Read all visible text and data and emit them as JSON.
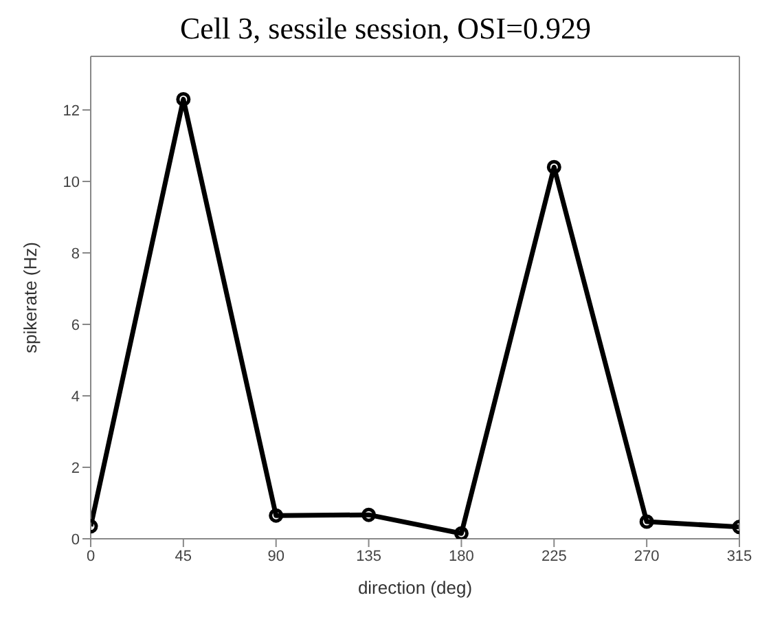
{
  "chart_data": {
    "type": "line",
    "title": "Cell 3, sessile session, OSI=0.929",
    "xlabel": "direction (deg)",
    "ylabel": "spikerate (Hz)",
    "x": [
      0,
      45,
      90,
      135,
      180,
      225,
      270,
      315
    ],
    "series": [
      {
        "color": "#000000",
        "values": [
          0.35,
          12.3,
          0.65,
          0.67,
          0.15,
          10.4,
          0.48,
          0.33
        ]
      }
    ],
    "xlim": [
      0,
      315
    ],
    "xticks": [
      0,
      45,
      90,
      135,
      180,
      225,
      270,
      315
    ],
    "ylim": [
      0,
      13.5
    ],
    "yticks": [
      0,
      2,
      4,
      6,
      8,
      10,
      12
    ],
    "grid": false,
    "legend": false,
    "marker": "circle",
    "line_style": "solid"
  }
}
